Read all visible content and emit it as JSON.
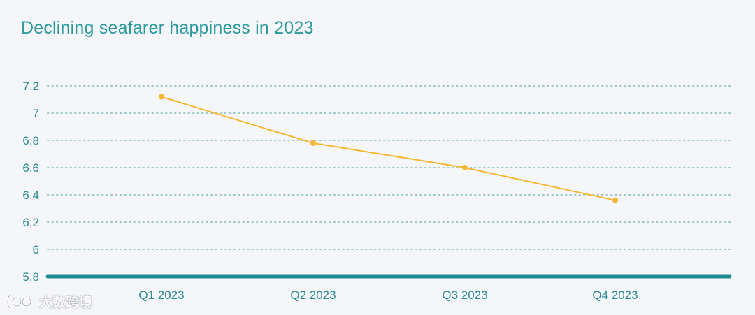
{
  "title": "Declining seafarer happiness in 2023",
  "watermark": "大数跨境",
  "colors": {
    "title": "#2a9a9d",
    "axis_text": "#2a8a8c",
    "baseline": "#1e8a8d",
    "grid": "#9ec9cb",
    "series": "#f5b731"
  },
  "chart_data": {
    "type": "line",
    "title": "Declining seafarer happiness in 2023",
    "categories": [
      "Q1 2023",
      "Q2 2023",
      "Q3 2023",
      "Q4 2023"
    ],
    "series": [
      {
        "values": [
          7.12,
          6.78,
          6.6,
          6.36
        ]
      }
    ],
    "ylim": [
      5.8,
      7.2
    ],
    "yticks": [
      "5.8",
      "6",
      "6.2",
      "6.4",
      "6.6",
      "6.8",
      "7",
      "7.2"
    ],
    "grid": true,
    "legend": "none"
  }
}
